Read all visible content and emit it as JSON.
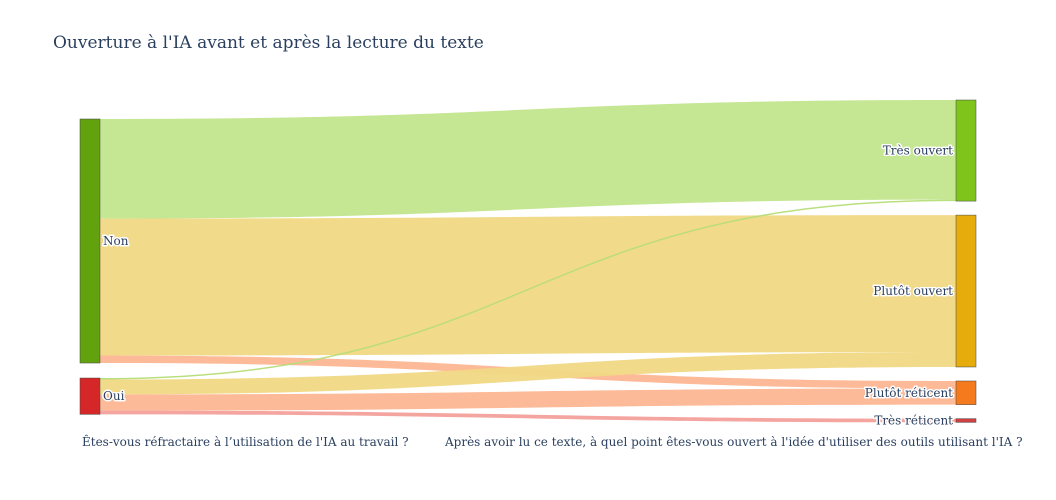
{
  "chart_data": {
    "type": "sankey",
    "title": "Ouverture à l'IA avant et après la lecture du texte",
    "left_axis_label": "Êtes-vous réfractaire à l’utilisation de l'IA au travail ?",
    "right_axis_label": "Après avoir lu ce texte, à quel point êtes-vous ouvert à l'idée d'utiliser des outils utilisant l'IA ?",
    "nodes": [
      {
        "id": "non",
        "label": "Non",
        "column": "left",
        "color": "#63a20f"
      },
      {
        "id": "oui",
        "label": "Oui",
        "column": "left",
        "color": "#d62728"
      },
      {
        "id": "tres_ouvert",
        "label": "Très ouvert",
        "column": "right",
        "color": "#7fc41a"
      },
      {
        "id": "plutot_ouvert",
        "label": "Plutôt ouvert",
        "column": "right",
        "color": "#e6ac0c"
      },
      {
        "id": "plutot_reticent",
        "label": "Plutôt réticent",
        "column": "right",
        "color": "#f57a1d"
      },
      {
        "id": "tres_reticent",
        "label": "Très réticent",
        "column": "right",
        "color": "#d04040"
      }
    ],
    "links": [
      {
        "source": "non",
        "target": "tres_ouvert",
        "value": 40,
        "color": "#c2e58c"
      },
      {
        "source": "non",
        "target": "plutot_ouvert",
        "value": 55,
        "color": "#f1d885"
      },
      {
        "source": "non",
        "target": "plutot_reticent",
        "value": 3,
        "color": "#fdb692"
      },
      {
        "source": "oui",
        "target": "tres_ouvert",
        "value": 0.6,
        "color": "#b5dd78"
      },
      {
        "source": "oui",
        "target": "plutot_ouvert",
        "value": 6,
        "color": "#f1d885"
      },
      {
        "source": "oui",
        "target": "plutot_reticent",
        "value": 6.5,
        "color": "#fdb692"
      },
      {
        "source": "oui",
        "target": "tres_reticent",
        "value": 1.5,
        "color": "#f3a09a"
      }
    ]
  }
}
